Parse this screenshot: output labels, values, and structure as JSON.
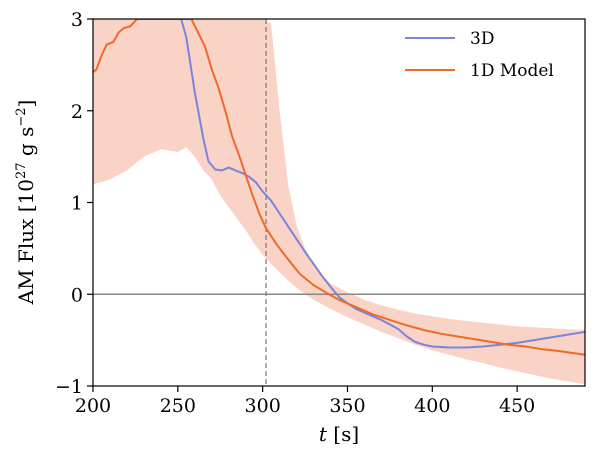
{
  "chart_data": {
    "type": "line",
    "xlabel_italic": "t",
    "xlabel_rest": " [s]",
    "ylabel_main": "AM Flux [10",
    "ylabel_exp": "27",
    "ylabel_units": " g s",
    "ylabel_units_exp": "−2",
    "ylabel_close": "]",
    "xlim": [
      200,
      490
    ],
    "ylim": [
      -1,
      3
    ],
    "xticks": [
      200,
      250,
      300,
      350,
      400,
      450
    ],
    "yticks": [
      -1,
      0,
      1,
      2,
      3
    ],
    "ytick_labels": [
      "−1",
      "0",
      "1",
      "2",
      "3"
    ],
    "vline_x": 302,
    "hline_y": 0,
    "legend_position": "top-right",
    "colors": {
      "series_3d": "#7b84dd",
      "series_1d": "#ef6a2a",
      "band": "#f9d4c6",
      "hline": "#888888",
      "vline": "#777777"
    },
    "series": [
      {
        "name": "3D",
        "key": "series_3d",
        "x": [
          252,
          255,
          260,
          265,
          268,
          272,
          276,
          280,
          284,
          288,
          292,
          296,
          300,
          305,
          310,
          315,
          320,
          325,
          330,
          335,
          340,
          345,
          350,
          355,
          360,
          365,
          370,
          375,
          380,
          385,
          390,
          395,
          400,
          410,
          420,
          430,
          440,
          450,
          460,
          470,
          480,
          490
        ],
        "y": [
          3.0,
          2.8,
          2.2,
          1.7,
          1.45,
          1.36,
          1.35,
          1.38,
          1.35,
          1.32,
          1.28,
          1.22,
          1.12,
          1.02,
          0.88,
          0.74,
          0.6,
          0.46,
          0.33,
          0.2,
          0.08,
          -0.03,
          -0.1,
          -0.16,
          -0.2,
          -0.24,
          -0.28,
          -0.33,
          -0.38,
          -0.46,
          -0.52,
          -0.55,
          -0.57,
          -0.58,
          -0.58,
          -0.57,
          -0.55,
          -0.53,
          -0.5,
          -0.47,
          -0.44,
          -0.41
        ]
      },
      {
        "name": "1D Model",
        "key": "series_1d",
        "x": [
          200,
          202,
          205,
          208,
          212,
          215,
          218,
          222,
          226,
          230,
          234,
          256,
          258,
          262,
          266,
          270,
          274,
          278,
          282,
          286,
          290,
          294,
          298,
          302,
          308,
          315,
          322,
          330,
          338,
          345,
          355,
          365,
          375,
          385,
          395,
          405,
          415,
          425,
          435,
          445,
          455,
          465,
          475,
          490
        ],
        "y": [
          2.42,
          2.45,
          2.6,
          2.72,
          2.75,
          2.85,
          2.9,
          2.92,
          3.0,
          3.0,
          3.0,
          3.0,
          3.0,
          2.85,
          2.7,
          2.45,
          2.25,
          2.0,
          1.72,
          1.52,
          1.3,
          1.08,
          0.88,
          0.72,
          0.55,
          0.38,
          0.22,
          0.1,
          0.01,
          -0.06,
          -0.14,
          -0.22,
          -0.28,
          -0.34,
          -0.39,
          -0.43,
          -0.46,
          -0.49,
          -0.52,
          -0.55,
          -0.57,
          -0.6,
          -0.62,
          -0.66
        ]
      }
    ],
    "band": {
      "x": [
        200,
        210,
        220,
        230,
        240,
        250,
        255,
        260,
        265,
        270,
        275,
        280,
        285,
        290,
        295,
        300,
        305,
        310,
        315,
        320,
        325,
        330,
        335,
        340,
        350,
        360,
        370,
        380,
        390,
        400,
        410,
        420,
        430,
        440,
        450,
        460,
        470,
        480,
        490
      ],
      "upper": [
        3.0,
        3.0,
        3.0,
        3.0,
        3.0,
        3.0,
        3.0,
        3.0,
        3.0,
        3.0,
        3.0,
        3.0,
        3.0,
        3.0,
        3.0,
        3.0,
        2.95,
        2.0,
        1.2,
        0.75,
        0.5,
        0.32,
        0.2,
        0.12,
        0.02,
        -0.06,
        -0.12,
        -0.17,
        -0.21,
        -0.24,
        -0.27,
        -0.29,
        -0.31,
        -0.33,
        -0.35,
        -0.36,
        -0.37,
        -0.38,
        -0.39
      ],
      "lower": [
        1.2,
        1.25,
        1.35,
        1.5,
        1.58,
        1.55,
        1.6,
        1.5,
        1.35,
        1.25,
        1.08,
        0.95,
        0.82,
        0.7,
        0.55,
        0.43,
        0.33,
        0.24,
        0.15,
        0.07,
        0.0,
        -0.06,
        -0.11,
        -0.16,
        -0.25,
        -0.33,
        -0.41,
        -0.48,
        -0.55,
        -0.61,
        -0.66,
        -0.71,
        -0.75,
        -0.8,
        -0.84,
        -0.88,
        -0.92,
        -0.95,
        -0.98
      ]
    }
  }
}
